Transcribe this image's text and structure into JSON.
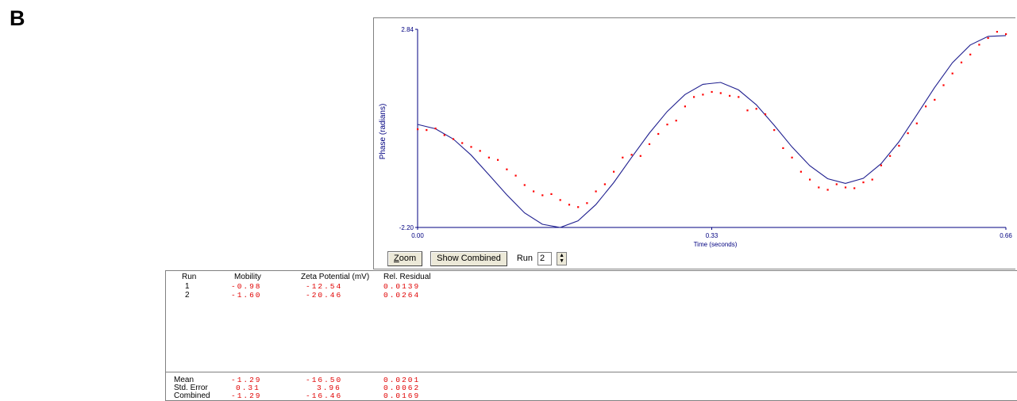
{
  "panel_letter": "B",
  "chart_data": {
    "type": "line",
    "xlabel": "Time (seconds)",
    "ylabel": "Phase (radians)",
    "xlim": [
      0.0,
      0.66
    ],
    "ylim": [
      -2.2,
      2.84
    ],
    "x_tick_labels": [
      "0.00",
      "0.33",
      "0.66"
    ],
    "y_tick_labels": [
      "2.84",
      "-2.20"
    ],
    "colors": {
      "fit": "#1f1f8f",
      "data": "#ff0000",
      "axis": "#000080"
    },
    "series": [
      {
        "style": "line",
        "color": "#1f1f8f",
        "x": [
          0.0,
          0.02,
          0.04,
          0.06,
          0.08,
          0.1,
          0.12,
          0.14,
          0.16,
          0.18,
          0.2,
          0.22,
          0.24,
          0.26,
          0.28,
          0.3,
          0.32,
          0.34,
          0.36,
          0.38,
          0.4,
          0.42,
          0.44,
          0.46,
          0.48,
          0.5,
          0.52,
          0.54,
          0.56,
          0.58,
          0.6,
          0.62,
          0.64,
          0.66
        ],
        "y": [
          0.42,
          0.31,
          0.05,
          -0.36,
          -0.86,
          -1.37,
          -1.83,
          -2.12,
          -2.2,
          -2.03,
          -1.62,
          -1.06,
          -0.42,
          0.2,
          0.75,
          1.18,
          1.44,
          1.49,
          1.3,
          0.92,
          0.4,
          -0.15,
          -0.63,
          -0.96,
          -1.08,
          -0.95,
          -0.58,
          -0.02,
          0.66,
          1.36,
          1.99,
          2.44,
          2.66,
          2.68
        ]
      },
      {
        "style": "scatter",
        "color": "#ff0000",
        "x": [
          0.0,
          0.01,
          0.02,
          0.03,
          0.04,
          0.05,
          0.06,
          0.07,
          0.08,
          0.09,
          0.1,
          0.11,
          0.12,
          0.13,
          0.14,
          0.15,
          0.16,
          0.17,
          0.18,
          0.19,
          0.2,
          0.21,
          0.22,
          0.23,
          0.24,
          0.25,
          0.26,
          0.27,
          0.28,
          0.29,
          0.3,
          0.31,
          0.32,
          0.33,
          0.34,
          0.35,
          0.36,
          0.37,
          0.38,
          0.39,
          0.4,
          0.41,
          0.42,
          0.43,
          0.44,
          0.45,
          0.46,
          0.47,
          0.48,
          0.49,
          0.5,
          0.51,
          0.52,
          0.53,
          0.54,
          0.55,
          0.56,
          0.57,
          0.58,
          0.59,
          0.6,
          0.61,
          0.62,
          0.63,
          0.64,
          0.65,
          0.66
        ],
        "y": [
          0.3,
          0.28,
          0.32,
          0.15,
          0.05,
          -0.05,
          -0.15,
          -0.25,
          -0.42,
          -0.48,
          -0.72,
          -0.88,
          -1.12,
          -1.28,
          -1.38,
          -1.35,
          -1.5,
          -1.62,
          -1.68,
          -1.58,
          -1.28,
          -1.1,
          -0.78,
          -0.42,
          -0.35,
          -0.38,
          -0.08,
          0.18,
          0.42,
          0.52,
          0.88,
          1.12,
          1.18,
          1.25,
          1.22,
          1.15,
          1.12,
          0.78,
          0.82,
          0.68,
          0.28,
          -0.18,
          -0.42,
          -0.78,
          -0.98,
          -1.18,
          -1.24,
          -1.1,
          -1.18,
          -1.2,
          -1.05,
          -0.98,
          -0.62,
          -0.38,
          -0.12,
          0.2,
          0.45,
          0.88,
          1.05,
          1.42,
          1.72,
          2.0,
          2.2,
          2.45,
          2.62,
          2.78,
          2.72
        ]
      }
    ]
  },
  "controls": {
    "zoom_label": "oom",
    "zoom_underline": "Z",
    "show_combined_label": "Show Combined",
    "run_label": "Run",
    "run_value": "2",
    "spinner_up": "▲",
    "spinner_down": "▼"
  },
  "results_table": {
    "headers": [
      "Run",
      "Mobility",
      "Zeta Potential (mV)",
      "Rel. Residual"
    ],
    "rows": [
      [
        "1",
        "-0.98",
        "-12.54",
        "0.0139"
      ],
      [
        "2",
        "-1.60",
        "-20.46",
        "0.0264"
      ]
    ],
    "summary": [
      [
        "Mean",
        "-1.29",
        "-16.50",
        "0.0201"
      ],
      [
        "Std. Error",
        "0.31",
        "3.96",
        "0.0062"
      ],
      [
        "Combined",
        "-1.29",
        "-16.46",
        "0.0169"
      ]
    ]
  }
}
